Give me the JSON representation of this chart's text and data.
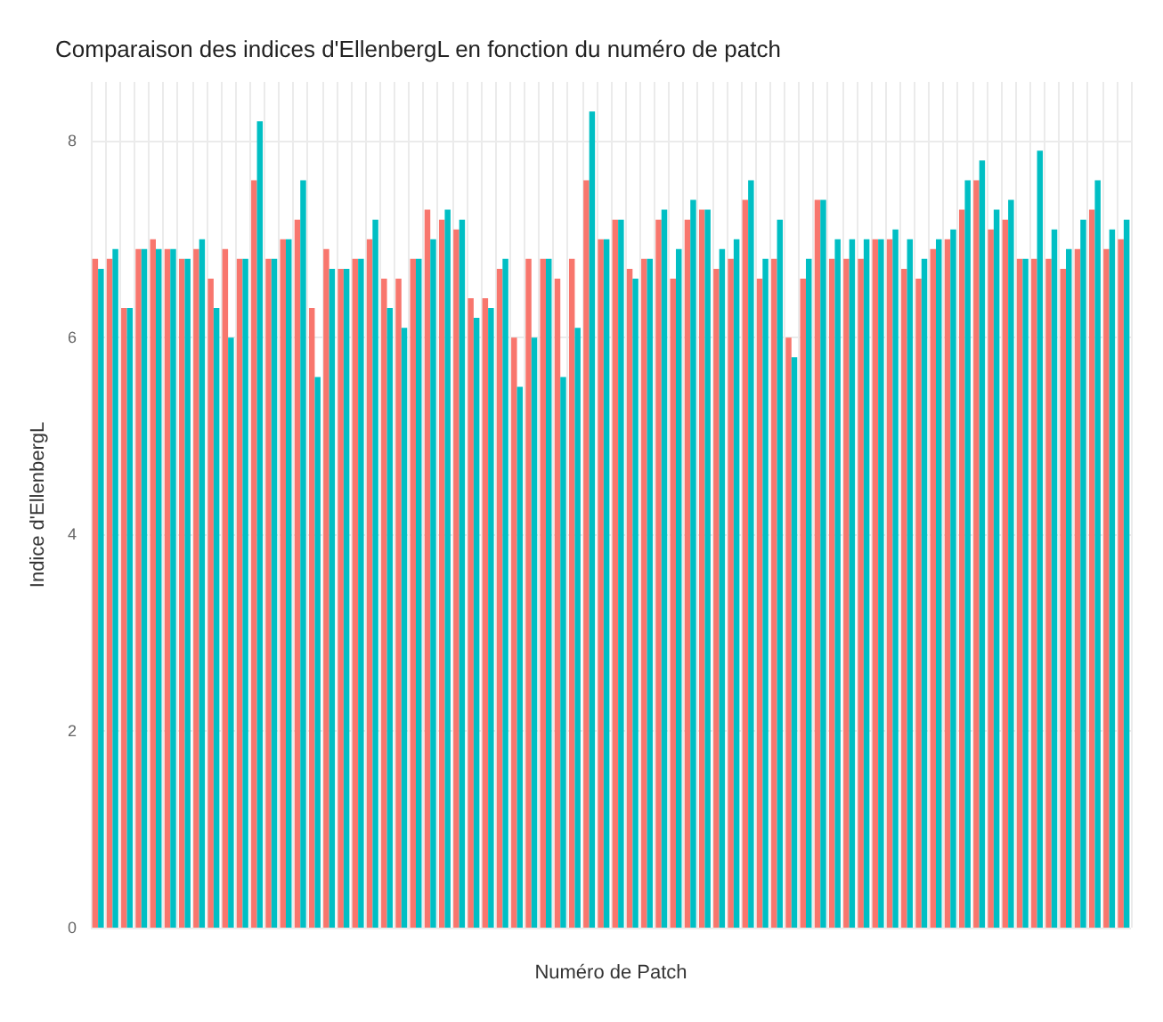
{
  "chart_data": {
    "type": "bar",
    "title": "Comparaison des indices d'EllenbergL en fonction du numéro de patch",
    "xlabel": "Numéro de Patch",
    "ylabel": "Indice d'EllenbergL",
    "categories": [
      null,
      null,
      null,
      null,
      null,
      null,
      null,
      null,
      null,
      null,
      null,
      null,
      null,
      null,
      null,
      null,
      null,
      null,
      null,
      null,
      null,
      null,
      null,
      null,
      null,
      null,
      null,
      null,
      null,
      null,
      null,
      null,
      null,
      null,
      null,
      null,
      null,
      null,
      null,
      null,
      null,
      null,
      null,
      null,
      null,
      null,
      null,
      null,
      null,
      null,
      null,
      null,
      null,
      null,
      null,
      null,
      null,
      null,
      null,
      null,
      null,
      null,
      null,
      null,
      null,
      null,
      null,
      null,
      null,
      null,
      null,
      null
    ],
    "series": [
      {
        "color": "#f8766d",
        "values": [
          6.8,
          6.8,
          6.3,
          6.9,
          7.0,
          6.9,
          6.8,
          6.9,
          6.6,
          6.9,
          6.8,
          7.6,
          6.8,
          7.0,
          7.2,
          6.3,
          6.9,
          6.7,
          6.8,
          7.0,
          6.6,
          6.6,
          6.8,
          7.3,
          7.2,
          7.1,
          6.4,
          6.4,
          6.7,
          6.0,
          6.8,
          6.8,
          6.6,
          6.8,
          7.6,
          7.0,
          7.2,
          6.7,
          6.8,
          7.2,
          6.6,
          7.2,
          7.3,
          6.7,
          6.8,
          7.4,
          6.6,
          6.8,
          6.0,
          6.6,
          7.4,
          6.8,
          6.8,
          6.8,
          7.0,
          7.0,
          6.7,
          6.6,
          6.9,
          7.0,
          7.3,
          7.6,
          7.1,
          7.2,
          6.8,
          6.8,
          6.8,
          6.7,
          6.9,
          7.3,
          6.9,
          7.0
        ]
      },
      {
        "color": "#00bfc4",
        "values": [
          6.7,
          6.9,
          6.3,
          6.9,
          6.9,
          6.9,
          6.8,
          7.0,
          6.3,
          6.0,
          6.8,
          8.2,
          6.8,
          7.0,
          7.6,
          5.6,
          6.7,
          6.7,
          6.8,
          7.2,
          6.3,
          6.1,
          6.8,
          7.0,
          7.3,
          7.2,
          6.2,
          6.3,
          6.8,
          5.5,
          6.0,
          6.8,
          5.6,
          6.1,
          8.3,
          7.0,
          7.2,
          6.6,
          6.8,
          7.3,
          6.9,
          7.4,
          7.3,
          6.9,
          7.0,
          7.6,
          6.8,
          7.2,
          5.8,
          6.8,
          7.4,
          7.0,
          7.0,
          7.0,
          7.0,
          7.1,
          7.0,
          6.8,
          7.0,
          7.1,
          7.6,
          7.8,
          7.3,
          7.4,
          6.8,
          7.9,
          7.1,
          6.9,
          7.2,
          7.6,
          7.1,
          7.2
        ]
      }
    ],
    "ylim": [
      0,
      8.6
    ],
    "yticks": [
      0,
      2,
      4,
      6,
      8
    ],
    "grid": true
  }
}
